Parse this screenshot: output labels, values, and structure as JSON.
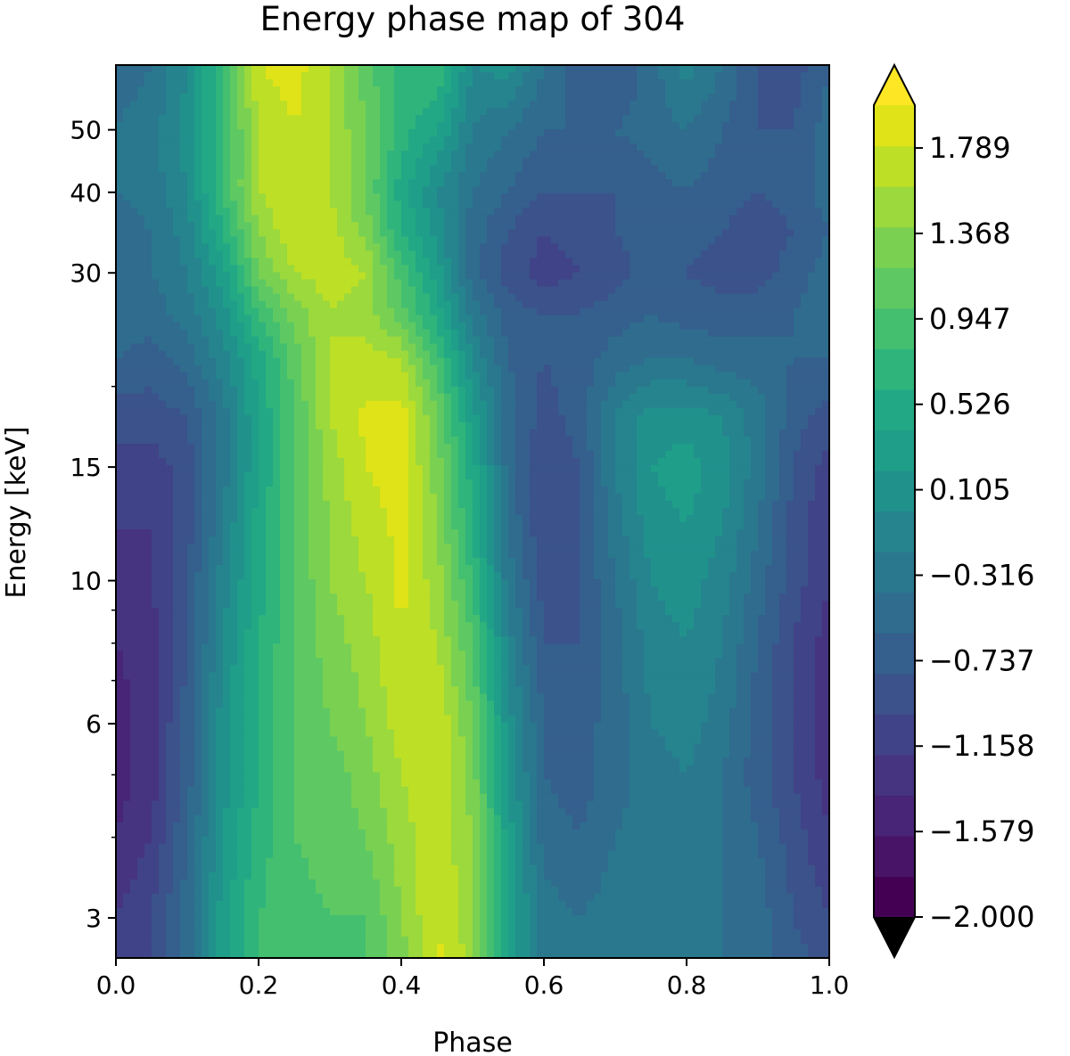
{
  "chart_data": {
    "type": "heatmap",
    "subtype": "filled-contour",
    "title": "Energy phase map of 304",
    "xlabel": "Phase",
    "ylabel": "Energy [keV]",
    "xlim": [
      0.0,
      1.0
    ],
    "ylim": [
      2.6,
      63
    ],
    "yscale": "log",
    "x_ticks": [
      0.0,
      0.2,
      0.4,
      0.6,
      0.8,
      1.0
    ],
    "x_tick_labels": [
      "0.0",
      "0.2",
      "0.4",
      "0.6",
      "0.8",
      "1.0"
    ],
    "y_ticks": [
      3,
      6,
      10,
      15,
      30,
      40,
      50
    ],
    "y_tick_labels": [
      "3",
      "6",
      "10",
      "15",
      "30",
      "40",
      "50"
    ],
    "y_minor_ticks": [
      4,
      5,
      7,
      8,
      9,
      20
    ],
    "colormap": "viridis",
    "colorbar": {
      "vmin": -2.0,
      "vmax": 2.0,
      "levels": 20,
      "extend": "both",
      "tick_values": [
        -2.0,
        -1.579,
        -1.158,
        -0.737,
        -0.316,
        0.105,
        0.526,
        0.947,
        1.368,
        1.789
      ],
      "tick_labels": [
        "−2.000",
        "−1.579",
        "−1.158",
        "−0.737",
        "−0.316",
        "0.105",
        "0.526",
        "0.947",
        "1.368",
        "1.789"
      ],
      "colors": [
        "#440154",
        "#481467",
        "#482576",
        "#463480",
        "#404387",
        "#3b528b",
        "#355f8d",
        "#2f6c8e",
        "#2a788e",
        "#25848e",
        "#21918c",
        "#1f9e89",
        "#22a884",
        "#2fb47c",
        "#44bf70",
        "#5ec962",
        "#7ad151",
        "#9bd93c",
        "#bddf26",
        "#dfe318"
      ],
      "under_color": "#000000",
      "over_color": "#fde725"
    },
    "phase": [
      0.0,
      0.05,
      0.1,
      0.15,
      0.2,
      0.25,
      0.3,
      0.35,
      0.4,
      0.45,
      0.5,
      0.55,
      0.6,
      0.65,
      0.7,
      0.75,
      0.8,
      0.85,
      0.9,
      0.95,
      1.0
    ],
    "energy_keV": [
      2.6,
      3,
      4,
      5,
      6,
      8,
      10,
      12,
      15,
      18,
      22,
      26,
      30,
      35,
      40,
      50,
      63
    ],
    "z": [
      [
        -1.1,
        -1.0,
        -0.5,
        0.3,
        0.8,
        0.8,
        0.9,
        1.0,
        1.3,
        1.85,
        1.5,
        0.4,
        -0.3,
        -0.4,
        -0.3,
        -0.3,
        -0.4,
        -0.4,
        -0.5,
        -0.7,
        -0.9
      ],
      [
        -1.2,
        -1.0,
        -0.5,
        0.3,
        0.8,
        0.9,
        1.0,
        1.0,
        1.4,
        1.8,
        1.5,
        0.4,
        -0.3,
        -0.4,
        -0.3,
        -0.3,
        -0.3,
        -0.4,
        -0.5,
        -0.8,
        -1.0
      ],
      [
        -1.4,
        -1.2,
        -0.6,
        0.2,
        0.7,
        1.0,
        1.1,
        1.2,
        1.5,
        1.75,
        1.4,
        0.3,
        -0.5,
        -0.6,
        -0.4,
        -0.3,
        -0.3,
        -0.4,
        -0.6,
        -0.9,
        -1.2
      ],
      [
        -1.5,
        -1.3,
        -0.7,
        0.1,
        0.6,
        1.0,
        1.1,
        1.3,
        1.6,
        1.8,
        1.3,
        0.2,
        -0.6,
        -0.7,
        -0.5,
        -0.3,
        -0.2,
        -0.4,
        -0.7,
        -1.0,
        -1.3
      ],
      [
        -1.5,
        -1.3,
        -0.7,
        0.1,
        0.6,
        1.0,
        1.2,
        1.4,
        1.7,
        1.8,
        1.2,
        0.1,
        -0.6,
        -0.7,
        -0.5,
        -0.2,
        -0.1,
        -0.3,
        -0.7,
        -1.0,
        -1.3
      ],
      [
        -1.4,
        -1.3,
        -0.8,
        0.0,
        0.6,
        1.0,
        1.3,
        1.5,
        1.8,
        1.6,
        1.0,
        -0.1,
        -0.8,
        -0.8,
        -0.5,
        -0.1,
        0.0,
        -0.2,
        -0.6,
        -1.0,
        -1.3
      ],
      [
        -1.3,
        -1.2,
        -0.8,
        -0.1,
        0.5,
        1.0,
        1.4,
        1.6,
        1.85,
        1.5,
        0.8,
        -0.3,
        -0.9,
        -0.8,
        -0.4,
        0.0,
        0.1,
        -0.1,
        -0.5,
        -0.9,
        -1.2
      ],
      [
        -1.2,
        -1.2,
        -0.9,
        -0.2,
        0.5,
        1.0,
        1.4,
        1.7,
        1.85,
        1.4,
        0.6,
        -0.4,
        -1.0,
        -0.8,
        -0.3,
        0.1,
        0.2,
        0.0,
        -0.4,
        -0.9,
        -1.2
      ],
      [
        -1.1,
        -1.1,
        -0.9,
        -0.3,
        0.4,
        1.0,
        1.5,
        1.8,
        1.9,
        1.3,
        0.5,
        -0.5,
        -1.0,
        -0.8,
        -0.2,
        0.2,
        0.3,
        0.1,
        -0.3,
        -0.8,
        -1.1
      ],
      [
        -0.9,
        -0.9,
        -0.8,
        -0.3,
        0.4,
        1.0,
        1.6,
        1.85,
        1.9,
        1.2,
        0.3,
        -0.5,
        -0.9,
        -0.7,
        -0.2,
        0.1,
        0.1,
        0.0,
        -0.3,
        -0.7,
        -0.9
      ],
      [
        -0.6,
        -0.7,
        -0.5,
        -0.1,
        0.5,
        1.1,
        1.6,
        1.7,
        1.6,
        0.9,
        0.0,
        -0.6,
        -0.8,
        -0.7,
        -0.5,
        -0.4,
        -0.4,
        -0.5,
        -0.5,
        -0.6,
        -0.6
      ],
      [
        -0.5,
        -0.5,
        -0.3,
        0.1,
        0.8,
        1.3,
        1.6,
        1.5,
        1.1,
        0.5,
        -0.3,
        -0.7,
        -0.8,
        -0.8,
        -0.7,
        -0.6,
        -0.7,
        -0.7,
        -0.7,
        -0.6,
        -0.5
      ],
      [
        -0.4,
        -0.4,
        -0.2,
        0.3,
        1.2,
        1.6,
        1.7,
        1.6,
        0.9,
        0.3,
        -0.5,
        -0.9,
        -1.1,
        -1.0,
        -0.9,
        -0.7,
        -0.8,
        -0.9,
        -0.9,
        -0.7,
        -0.5
      ],
      [
        -0.5,
        -0.4,
        -0.1,
        0.6,
        1.4,
        1.8,
        1.7,
        1.3,
        0.6,
        0.1,
        -0.5,
        -0.8,
        -1.0,
        -0.9,
        -0.8,
        -0.7,
        -0.7,
        -0.8,
        -0.9,
        -0.8,
        -0.6
      ],
      [
        -0.4,
        -0.3,
        0.0,
        0.8,
        1.6,
        1.8,
        1.6,
        1.2,
        0.5,
        0.0,
        -0.4,
        -0.6,
        -0.8,
        -0.8,
        -0.8,
        -0.7,
        -0.6,
        -0.7,
        -0.8,
        -0.7,
        -0.5
      ],
      [
        -0.4,
        -0.3,
        0.1,
        0.8,
        1.6,
        1.8,
        1.6,
        1.2,
        0.7,
        0.4,
        -0.2,
        -0.4,
        -0.6,
        -0.6,
        -0.6,
        -0.5,
        -0.4,
        -0.6,
        -0.8,
        -0.8,
        -0.5
      ],
      [
        -0.5,
        -0.4,
        0.0,
        0.8,
        1.8,
        1.9,
        1.6,
        1.1,
        0.7,
        0.8,
        0.0,
        0.1,
        -0.4,
        -0.7,
        -0.8,
        -0.5,
        -0.1,
        -0.4,
        -0.8,
        -0.9,
        -0.6
      ]
    ]
  }
}
